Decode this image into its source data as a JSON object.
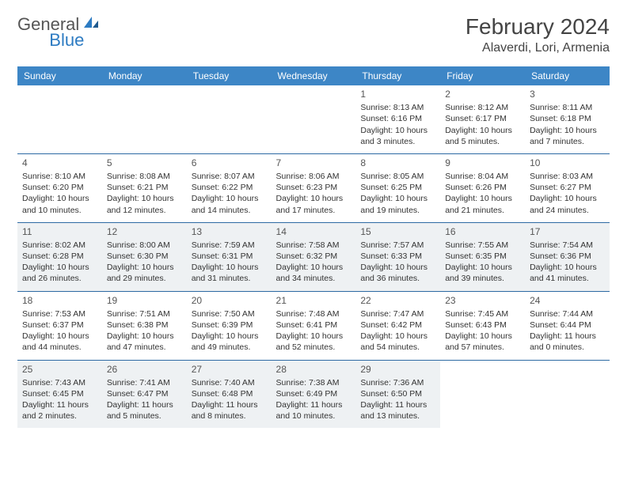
{
  "logo": {
    "word1": "General",
    "word2": "Blue"
  },
  "title": "February 2024",
  "location": "Alaverdi, Lori, Armenia",
  "colors": {
    "header_bg": "#3d86c6",
    "header_text": "#ffffff",
    "row_border": "#2d6aa3",
    "shaded_bg": "#eef1f3",
    "body_text": "#333333",
    "logo_blue": "#2d7bc2",
    "logo_gray": "#666666"
  },
  "font": {
    "title_size": 28,
    "location_size": 16,
    "dayhead_size": 12,
    "body_size": 10.5
  },
  "day_headers": [
    "Sunday",
    "Monday",
    "Tuesday",
    "Wednesday",
    "Thursday",
    "Friday",
    "Saturday"
  ],
  "weeks": [
    [
      {
        "empty": true
      },
      {
        "empty": true
      },
      {
        "empty": true
      },
      {
        "empty": true
      },
      {
        "n": "1",
        "sunrise": "Sunrise: 8:13 AM",
        "sunset": "Sunset: 6:16 PM",
        "daylight": "Daylight: 10 hours and 3 minutes."
      },
      {
        "n": "2",
        "sunrise": "Sunrise: 8:12 AM",
        "sunset": "Sunset: 6:17 PM",
        "daylight": "Daylight: 10 hours and 5 minutes."
      },
      {
        "n": "3",
        "sunrise": "Sunrise: 8:11 AM",
        "sunset": "Sunset: 6:18 PM",
        "daylight": "Daylight: 10 hours and 7 minutes."
      }
    ],
    [
      {
        "n": "4",
        "sunrise": "Sunrise: 8:10 AM",
        "sunset": "Sunset: 6:20 PM",
        "daylight": "Daylight: 10 hours and 10 minutes."
      },
      {
        "n": "5",
        "sunrise": "Sunrise: 8:08 AM",
        "sunset": "Sunset: 6:21 PM",
        "daylight": "Daylight: 10 hours and 12 minutes."
      },
      {
        "n": "6",
        "sunrise": "Sunrise: 8:07 AM",
        "sunset": "Sunset: 6:22 PM",
        "daylight": "Daylight: 10 hours and 14 minutes."
      },
      {
        "n": "7",
        "sunrise": "Sunrise: 8:06 AM",
        "sunset": "Sunset: 6:23 PM",
        "daylight": "Daylight: 10 hours and 17 minutes."
      },
      {
        "n": "8",
        "sunrise": "Sunrise: 8:05 AM",
        "sunset": "Sunset: 6:25 PM",
        "daylight": "Daylight: 10 hours and 19 minutes."
      },
      {
        "n": "9",
        "sunrise": "Sunrise: 8:04 AM",
        "sunset": "Sunset: 6:26 PM",
        "daylight": "Daylight: 10 hours and 21 minutes."
      },
      {
        "n": "10",
        "sunrise": "Sunrise: 8:03 AM",
        "sunset": "Sunset: 6:27 PM",
        "daylight": "Daylight: 10 hours and 24 minutes."
      }
    ],
    [
      {
        "n": "11",
        "sunrise": "Sunrise: 8:02 AM",
        "sunset": "Sunset: 6:28 PM",
        "daylight": "Daylight: 10 hours and 26 minutes."
      },
      {
        "n": "12",
        "sunrise": "Sunrise: 8:00 AM",
        "sunset": "Sunset: 6:30 PM",
        "daylight": "Daylight: 10 hours and 29 minutes."
      },
      {
        "n": "13",
        "sunrise": "Sunrise: 7:59 AM",
        "sunset": "Sunset: 6:31 PM",
        "daylight": "Daylight: 10 hours and 31 minutes."
      },
      {
        "n": "14",
        "sunrise": "Sunrise: 7:58 AM",
        "sunset": "Sunset: 6:32 PM",
        "daylight": "Daylight: 10 hours and 34 minutes."
      },
      {
        "n": "15",
        "sunrise": "Sunrise: 7:57 AM",
        "sunset": "Sunset: 6:33 PM",
        "daylight": "Daylight: 10 hours and 36 minutes."
      },
      {
        "n": "16",
        "sunrise": "Sunrise: 7:55 AM",
        "sunset": "Sunset: 6:35 PM",
        "daylight": "Daylight: 10 hours and 39 minutes."
      },
      {
        "n": "17",
        "sunrise": "Sunrise: 7:54 AM",
        "sunset": "Sunset: 6:36 PM",
        "daylight": "Daylight: 10 hours and 41 minutes."
      }
    ],
    [
      {
        "n": "18",
        "sunrise": "Sunrise: 7:53 AM",
        "sunset": "Sunset: 6:37 PM",
        "daylight": "Daylight: 10 hours and 44 minutes."
      },
      {
        "n": "19",
        "sunrise": "Sunrise: 7:51 AM",
        "sunset": "Sunset: 6:38 PM",
        "daylight": "Daylight: 10 hours and 47 minutes."
      },
      {
        "n": "20",
        "sunrise": "Sunrise: 7:50 AM",
        "sunset": "Sunset: 6:39 PM",
        "daylight": "Daylight: 10 hours and 49 minutes."
      },
      {
        "n": "21",
        "sunrise": "Sunrise: 7:48 AM",
        "sunset": "Sunset: 6:41 PM",
        "daylight": "Daylight: 10 hours and 52 minutes."
      },
      {
        "n": "22",
        "sunrise": "Sunrise: 7:47 AM",
        "sunset": "Sunset: 6:42 PM",
        "daylight": "Daylight: 10 hours and 54 minutes."
      },
      {
        "n": "23",
        "sunrise": "Sunrise: 7:45 AM",
        "sunset": "Sunset: 6:43 PM",
        "daylight": "Daylight: 10 hours and 57 minutes."
      },
      {
        "n": "24",
        "sunrise": "Sunrise: 7:44 AM",
        "sunset": "Sunset: 6:44 PM",
        "daylight": "Daylight: 11 hours and 0 minutes."
      }
    ],
    [
      {
        "n": "25",
        "sunrise": "Sunrise: 7:43 AM",
        "sunset": "Sunset: 6:45 PM",
        "daylight": "Daylight: 11 hours and 2 minutes."
      },
      {
        "n": "26",
        "sunrise": "Sunrise: 7:41 AM",
        "sunset": "Sunset: 6:47 PM",
        "daylight": "Daylight: 11 hours and 5 minutes."
      },
      {
        "n": "27",
        "sunrise": "Sunrise: 7:40 AM",
        "sunset": "Sunset: 6:48 PM",
        "daylight": "Daylight: 11 hours and 8 minutes."
      },
      {
        "n": "28",
        "sunrise": "Sunrise: 7:38 AM",
        "sunset": "Sunset: 6:49 PM",
        "daylight": "Daylight: 11 hours and 10 minutes."
      },
      {
        "n": "29",
        "sunrise": "Sunrise: 7:36 AM",
        "sunset": "Sunset: 6:50 PM",
        "daylight": "Daylight: 11 hours and 13 minutes."
      },
      {
        "empty": true
      },
      {
        "empty": true
      }
    ]
  ],
  "shaded_rows": [
    2,
    4
  ]
}
